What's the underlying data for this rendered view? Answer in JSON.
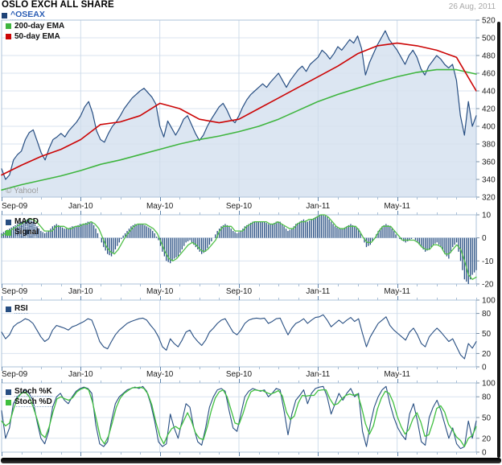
{
  "header": {
    "title": "OSLO EXCH ALL SHARE",
    "symbol": "^OSEAX",
    "date": "26 Aug, 2011"
  },
  "watermark": "© Yahoo!",
  "colors": {
    "price_line": "#274e82",
    "price_fill": "#dce6f2",
    "legend_square_blue": "#1f4478",
    "ema200_green": "#3fb53f",
    "ema50_red": "#cc0505",
    "signal_green": "#52c04a",
    "symbol_blue": "#2a5db4",
    "grid": "#d9e3ef",
    "grid_v": "#cfdcea",
    "border": "#aec3d9",
    "axis_text": "#222222",
    "axis_tick": "#7a8fa6",
    "date_gray": "#a8a8a8",
    "watermark_gray": "#9a9a9a"
  },
  "x_axis": {
    "labels": [
      "Sep-09",
      "Jan-10",
      "May-10",
      "Sep-10",
      "Jan-11",
      "May-11"
    ],
    "major_month_indices": [
      0,
      4,
      8,
      12,
      16,
      20
    ],
    "months_total": 24
  },
  "chart_data": [
    {
      "type": "area",
      "title": "^OSEAX price with 200-day and 50-day EMA",
      "ylim": [
        320,
        520
      ],
      "yticks": [
        320,
        340,
        360,
        380,
        400,
        420,
        440,
        460,
        480,
        500,
        520
      ],
      "series": [
        {
          "name": "^OSEAX",
          "type": "area-line",
          "color": "#274e82",
          "fill": "#dce6f2",
          "width": 1.2,
          "values": [
            352,
            340,
            345,
            362,
            368,
            372,
            385,
            393,
            396,
            383,
            370,
            362,
            375,
            385,
            388,
            392,
            388,
            395,
            400,
            405,
            412,
            422,
            428,
            415,
            395,
            385,
            382,
            392,
            400,
            405,
            412,
            420,
            426,
            432,
            436,
            440,
            443,
            438,
            433,
            425,
            400,
            388,
            406,
            398,
            390,
            398,
            408,
            412,
            402,
            392,
            384,
            390,
            400,
            408,
            415,
            422,
            426,
            418,
            408,
            404,
            412,
            422,
            430,
            436,
            440,
            444,
            448,
            444,
            450,
            455,
            460,
            452,
            444,
            452,
            458,
            464,
            468,
            462,
            470,
            474,
            478,
            486,
            482,
            476,
            482,
            490,
            486,
            492,
            498,
            494,
            502,
            488,
            458,
            472,
            482,
            492,
            500,
            508,
            498,
            492,
            486,
            478,
            470,
            480,
            486,
            478,
            465,
            458,
            468,
            474,
            480,
            476,
            470,
            466,
            470,
            452,
            412,
            390,
            428,
            400,
            412
          ]
        },
        {
          "name": "200-day EMA",
          "type": "line",
          "color": "#3fb53f",
          "width": 1.6,
          "values": [
            328,
            334,
            339,
            344,
            350,
            357,
            362,
            368,
            374,
            380,
            385,
            389,
            394,
            400,
            408,
            418,
            428,
            436,
            443,
            450,
            456,
            461,
            464,
            464,
            459
          ]
        },
        {
          "name": "50-day EMA",
          "type": "line",
          "color": "#cc0505",
          "width": 1.6,
          "values": [
            345,
            356,
            366,
            374,
            385,
            402,
            405,
            412,
            426,
            420,
            408,
            404,
            408,
            420,
            432,
            444,
            456,
            468,
            482,
            491,
            494,
            491,
            486,
            478,
            440
          ]
        }
      ]
    },
    {
      "type": "bar+line",
      "title": "MACD",
      "ylim": [
        -20,
        10
      ],
      "yticks": [
        -20,
        -10,
        0,
        10
      ],
      "series": [
        {
          "name": "MACD",
          "type": "bar",
          "color": "#274e82",
          "values": [
            2,
            3,
            4,
            5,
            6,
            7,
            8,
            8,
            7,
            5,
            3,
            2,
            3,
            5,
            6,
            5,
            4,
            4,
            5,
            5,
            6,
            6,
            7,
            7,
            4,
            0,
            -4,
            -7,
            -8,
            -5,
            -2,
            1,
            3,
            5,
            6,
            6,
            6,
            5,
            4,
            2,
            -1,
            -6,
            -10,
            -11,
            -9,
            -8,
            -5,
            -2,
            -1,
            -3,
            -5,
            -7,
            -6,
            -3,
            0,
            3,
            5,
            6,
            5,
            3,
            2,
            3,
            5,
            6,
            7,
            7,
            7,
            7,
            6,
            6,
            7,
            7,
            5,
            3,
            4,
            6,
            7,
            8,
            7,
            8,
            9,
            10,
            10,
            9,
            7,
            5,
            4,
            4,
            5,
            6,
            5,
            4,
            0,
            -4,
            -3,
            0,
            3,
            5,
            6,
            5,
            3,
            0,
            -1,
            -2,
            -1,
            0,
            -2,
            -4,
            -6,
            -5,
            -3,
            -2,
            -4,
            -7,
            -9,
            -4,
            -2,
            -10,
            -18,
            -20,
            -16,
            -14
          ]
        },
        {
          "name": "Signal",
          "type": "line",
          "color": "#52c04a",
          "width": 1.3,
          "values": [
            1,
            2,
            3,
            4,
            5,
            6,
            7,
            8,
            8,
            7,
            5,
            3,
            3,
            3,
            5,
            5,
            5,
            4,
            4,
            5,
            5,
            6,
            6,
            7,
            6,
            4,
            0,
            -4,
            -6,
            -7,
            -5,
            -2,
            1,
            3,
            5,
            6,
            6,
            6,
            5,
            4,
            2,
            -2,
            -6,
            -9,
            -10,
            -9,
            -7,
            -5,
            -3,
            -2,
            -3,
            -5,
            -6,
            -5,
            -3,
            -1,
            3,
            5,
            5,
            5,
            3,
            3,
            3,
            5,
            6,
            7,
            7,
            7,
            7,
            6,
            6,
            7,
            6,
            5,
            4,
            4,
            6,
            7,
            7,
            8,
            8,
            9,
            10,
            10,
            9,
            7,
            5,
            4,
            4,
            5,
            5,
            5,
            3,
            0,
            -2,
            -2,
            0,
            3,
            5,
            5,
            5,
            3,
            1,
            -1,
            -1,
            -1,
            -1,
            -2,
            -4,
            -5,
            -5,
            -3,
            -3,
            -4,
            -7,
            -7,
            -5,
            -3,
            -5,
            -10,
            -16,
            -18,
            -17
          ]
        }
      ]
    },
    {
      "type": "line",
      "title": "RSI",
      "ylim": [
        0,
        100
      ],
      "yticks": [
        0,
        20,
        50,
        80,
        100
      ],
      "series": [
        {
          "name": "RSI",
          "type": "line",
          "color": "#274e82",
          "width": 1.1,
          "values": [
            52,
            42,
            48,
            60,
            65,
            68,
            72,
            70,
            65,
            55,
            45,
            38,
            42,
            55,
            62,
            60,
            58,
            55,
            60,
            62,
            65,
            68,
            72,
            70,
            55,
            38,
            30,
            27,
            38,
            48,
            55,
            60,
            65,
            68,
            70,
            72,
            73,
            70,
            62,
            55,
            45,
            30,
            25,
            42,
            35,
            30,
            40,
            52,
            55,
            45,
            38,
            32,
            40,
            52,
            58,
            65,
            70,
            72,
            62,
            52,
            48,
            55,
            65,
            70,
            72,
            73,
            72,
            73,
            65,
            68,
            72,
            73,
            60,
            48,
            58,
            65,
            68,
            72,
            65,
            70,
            74,
            75,
            78,
            70,
            60,
            65,
            70,
            65,
            70,
            74,
            68,
            72,
            50,
            30,
            45,
            55,
            65,
            70,
            75,
            62,
            55,
            50,
            45,
            40,
            52,
            58,
            48,
            35,
            30,
            45,
            52,
            58,
            52,
            45,
            38,
            42,
            30,
            18,
            12,
            35,
            28,
            38
          ]
        }
      ]
    },
    {
      "type": "line",
      "title": "Stochastic",
      "ylim": [
        0,
        100
      ],
      "yticks": [
        0,
        20,
        50,
        80,
        100
      ],
      "series": [
        {
          "name": "Stoch %K",
          "type": "line",
          "color": "#274e82",
          "width": 1.1,
          "values": [
            60,
            20,
            35,
            70,
            80,
            85,
            90,
            85,
            75,
            45,
            20,
            12,
            30,
            65,
            80,
            85,
            75,
            70,
            80,
            88,
            92,
            94,
            92,
            85,
            40,
            12,
            8,
            15,
            45,
            70,
            80,
            85,
            90,
            92,
            94,
            92,
            95,
            88,
            70,
            45,
            15,
            8,
            12,
            55,
            35,
            20,
            45,
            70,
            65,
            35,
            15,
            10,
            35,
            65,
            80,
            90,
            92,
            88,
            60,
            35,
            30,
            55,
            80,
            88,
            92,
            90,
            88,
            90,
            80,
            85,
            92,
            90,
            60,
            25,
            55,
            75,
            82,
            90,
            70,
            85,
            92,
            94,
            95,
            80,
            55,
            70,
            85,
            75,
            85,
            92,
            80,
            85,
            30,
            8,
            40,
            65,
            80,
            90,
            95,
            70,
            50,
            35,
            25,
            18,
            55,
            70,
            45,
            15,
            10,
            50,
            65,
            75,
            60,
            40,
            20,
            35,
            12,
            5,
            8,
            45,
            20,
            45
          ]
        },
        {
          "name": "Stoch %D",
          "type": "line",
          "color": "#3fbf3f",
          "width": 1.3,
          "values": [
            45,
            38,
            42,
            62,
            78,
            85,
            87,
            80,
            65,
            47,
            26,
            21,
            36,
            58,
            77,
            80,
            77,
            75,
            79,
            87,
            91,
            93,
            90,
            72,
            46,
            20,
            12,
            23,
            43,
            65,
            78,
            85,
            89,
            93,
            93,
            94,
            92,
            84,
            68,
            43,
            23,
            12,
            25,
            34,
            37,
            33,
            45,
            57,
            45,
            28,
            20,
            18,
            37,
            60,
            78,
            87,
            90,
            80,
            61,
            42,
            40,
            55,
            74,
            87,
            90,
            89,
            89,
            86,
            84,
            86,
            89,
            81,
            58,
            47,
            52,
            71,
            82,
            81,
            82,
            82,
            89,
            90,
            90,
            77,
            68,
            70,
            77,
            82,
            84,
            82,
            84,
            65,
            41,
            26,
            38,
            62,
            78,
            88,
            85,
            72,
            52,
            37,
            26,
            33,
            48,
            57,
            43,
            23,
            25,
            42,
            63,
            67,
            58,
            40,
            32,
            22,
            17,
            8,
            20,
            24,
            37
          ]
        }
      ]
    }
  ]
}
